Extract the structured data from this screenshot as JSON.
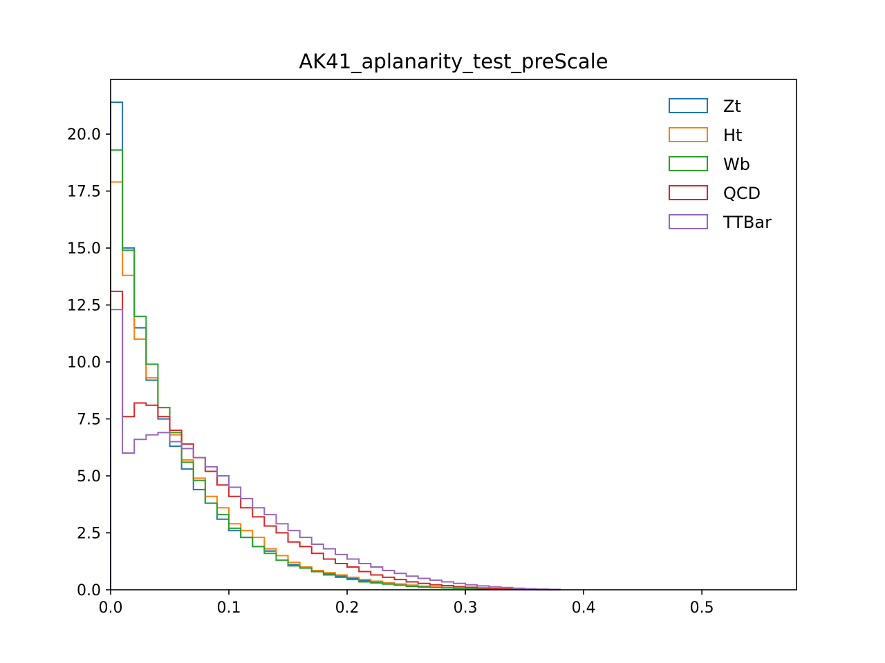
{
  "chart_data": {
    "type": "histogram",
    "title": "AK41_aplanarity_test_preScale",
    "xlabel": "",
    "ylabel": "",
    "xlim": [
      0.0,
      0.58
    ],
    "ylim": [
      0.0,
      22.4
    ],
    "xticks": [
      "0.0",
      "0.1",
      "0.2",
      "0.3",
      "0.4",
      "0.5"
    ],
    "yticks": [
      "0.0",
      "2.5",
      "5.0",
      "7.5",
      "10.0",
      "12.5",
      "15.0",
      "17.5",
      "20.0"
    ],
    "legend_position": "upper-right",
    "bin_edges": [
      0.0,
      0.01,
      0.02,
      0.03,
      0.04,
      0.05,
      0.06,
      0.07,
      0.08,
      0.09,
      0.1,
      0.11,
      0.12,
      0.13,
      0.14,
      0.15,
      0.16,
      0.17,
      0.18,
      0.19,
      0.2,
      0.21,
      0.22,
      0.23,
      0.24,
      0.25,
      0.26,
      0.27,
      0.28,
      0.29,
      0.3,
      0.31,
      0.32,
      0.33,
      0.34,
      0.35,
      0.36,
      0.37,
      0.38
    ],
    "series": [
      {
        "name": "Zt",
        "color": "#1f77b4",
        "values": [
          21.4,
          15.0,
          11.5,
          9.2,
          7.5,
          6.3,
          5.3,
          4.4,
          3.8,
          3.1,
          2.6,
          2.3,
          1.9,
          1.7,
          1.5,
          1.1,
          1.0,
          0.8,
          0.7,
          0.6,
          0.5,
          0.4,
          0.35,
          0.3,
          0.25,
          0.2,
          0.15,
          0.12,
          0.1,
          0.08,
          0.06,
          0.05,
          0.04,
          0.03,
          0.02,
          0.02,
          0.01,
          0.01
        ]
      },
      {
        "name": "Ht",
        "color": "#ff7f0e",
        "values": [
          17.9,
          13.8,
          11.0,
          9.3,
          8.0,
          6.8,
          5.7,
          4.9,
          4.1,
          3.6,
          2.9,
          2.6,
          2.3,
          1.8,
          1.5,
          1.2,
          1.0,
          0.85,
          0.75,
          0.65,
          0.55,
          0.45,
          0.38,
          0.3,
          0.25,
          0.2,
          0.16,
          0.13,
          0.1,
          0.08,
          0.06,
          0.05,
          0.04,
          0.03,
          0.02,
          0.02,
          0.01,
          0.01
        ]
      },
      {
        "name": "Wb",
        "color": "#2ca02c",
        "values": [
          19.3,
          14.9,
          12.0,
          9.9,
          8.0,
          6.9,
          5.6,
          4.8,
          3.8,
          3.3,
          2.7,
          2.3,
          1.9,
          1.6,
          1.3,
          1.05,
          0.95,
          0.8,
          0.65,
          0.55,
          0.45,
          0.35,
          0.3,
          0.25,
          0.2,
          0.15,
          0.12,
          0.1,
          0.08,
          0.06,
          0.05,
          0.04,
          0.03,
          0.02,
          0.02,
          0.01,
          0.01,
          0.0
        ]
      },
      {
        "name": "QCD",
        "color": "#d62728",
        "values": [
          13.1,
          7.6,
          8.2,
          8.1,
          7.6,
          7.0,
          6.4,
          5.8,
          5.2,
          4.6,
          4.1,
          3.6,
          3.2,
          2.8,
          2.5,
          2.1,
          1.9,
          1.6,
          1.35,
          1.15,
          1.0,
          0.8,
          0.65,
          0.55,
          0.45,
          0.35,
          0.28,
          0.22,
          0.18,
          0.14,
          0.11,
          0.08,
          0.06,
          0.04,
          0.03,
          0.02,
          0.01,
          0.01
        ]
      },
      {
        "name": "TTBar",
        "color": "#9467bd",
        "values": [
          12.3,
          6.0,
          6.6,
          6.8,
          6.9,
          6.5,
          6.2,
          5.8,
          5.4,
          5.0,
          4.5,
          4.0,
          3.6,
          3.3,
          2.9,
          2.6,
          2.3,
          2.0,
          1.8,
          1.55,
          1.35,
          1.15,
          1.0,
          0.85,
          0.72,
          0.6,
          0.5,
          0.42,
          0.35,
          0.28,
          0.22,
          0.17,
          0.13,
          0.1,
          0.07,
          0.05,
          0.03,
          0.02
        ]
      }
    ]
  }
}
